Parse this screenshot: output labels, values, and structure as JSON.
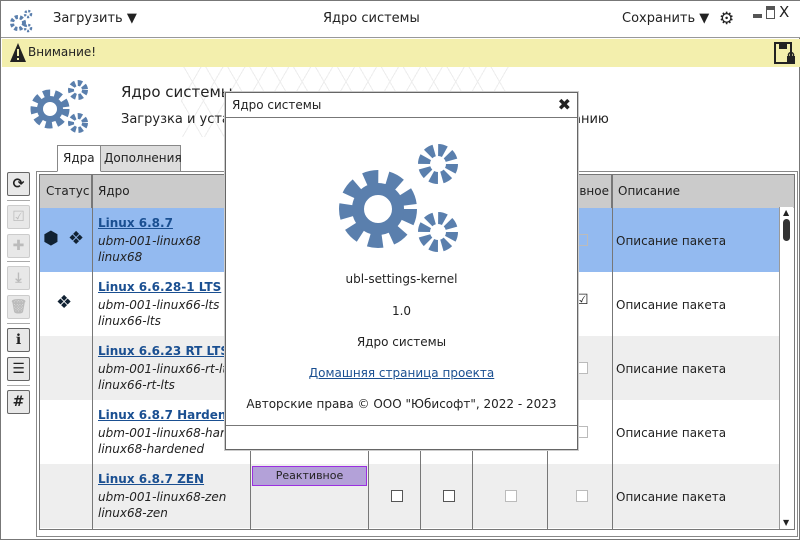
{
  "window": {
    "title": "Ядро системы",
    "load_label": "Загрузить",
    "save_label": "Сохранить"
  },
  "warning": {
    "text": "Внимание!"
  },
  "header": {
    "title": "Ядро системы",
    "subtitle_left": "Загрузка и уста",
    "subtitle_right": "анию"
  },
  "tabs": [
    {
      "label": "Ядра",
      "active": true
    },
    {
      "label": "Дополнения",
      "active": false
    }
  ],
  "table": {
    "columns": [
      "Статус",
      "Ядро",
      "",
      "",
      "",
      "",
      "рвное",
      "Описание"
    ],
    "rows": [
      {
        "name": "Linux 6.8.7",
        "pkg": "ubm-001-linux68",
        "module": "linux68",
        "status_icons": [
          "cubes-icon",
          "dropbox-icon"
        ],
        "description": "Описание пакета",
        "check": false,
        "selected": true
      },
      {
        "name": "Linux 6.6.28-1 LTS",
        "pkg": "ubm-001-linux66-lts",
        "module": "linux66-lts",
        "status_icons": [
          "dropbox-icon"
        ],
        "description": "Описание пакета",
        "check": true
      },
      {
        "name": "Linux 6.6.23 RT LTS",
        "pkg": "ubm-001-linux66-rt-lts",
        "module": "linux66-rt-lts",
        "status_icons": [],
        "description": "Описание пакета",
        "check": false
      },
      {
        "name": "Linux 6.8.7 Hardened",
        "pkg": "ubm-001-linux68-hardened",
        "module": "linux68-hardened",
        "status_icons": [],
        "description": "Описание пакета",
        "check": false
      },
      {
        "name": "Linux 6.8.7 ZEN",
        "pkg": "ubm-001-linux68-zen",
        "module": "linux68-zen",
        "status_icons": [],
        "description": "Описание пакета",
        "badge": "Реактивное",
        "check": false
      }
    ]
  },
  "dialog": {
    "title": "Ядро системы",
    "app_name": "ubl-settings-kernel",
    "version": "1.0",
    "description": "Ядро системы",
    "link": "Домашняя страница проекта",
    "copyright": "Авторские права © ООО \"Юбисофт\", 2022 - 2023"
  },
  "colors": {
    "accent": "#5a7fad",
    "selected_row": "#93baf0",
    "warning_bg": "#f3efad",
    "link": "#1a4f91",
    "badge_bg": "#b3a1d8",
    "badge_border": "#9b2fe0"
  }
}
